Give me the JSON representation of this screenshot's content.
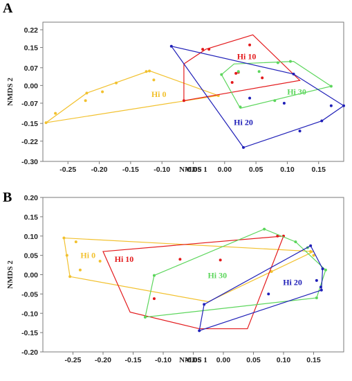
{
  "chart_data": [
    {
      "panel": "A",
      "type": "scatter",
      "xlabel": "NMDS 1",
      "ylabel": "NMDS 2",
      "xlim": [
        -0.29,
        0.19
      ],
      "ylim": [
        -0.3,
        0.25
      ],
      "xticks": [
        "-0.25",
        "-0.20",
        "-0.15",
        "-0.10",
        "-0.05",
        "0.00",
        "0.05",
        "0.10",
        "0.15"
      ],
      "xtick_values": [
        -0.25,
        -0.2,
        -0.15,
        -0.1,
        -0.05,
        0.0,
        0.05,
        0.1,
        0.15
      ],
      "yticks": [
        "0.22",
        "0.15",
        "0.07",
        "0.00",
        "-0.07",
        "-0.15",
        "-0.22",
        "-0.30"
      ],
      "ytick_values": [
        0.22,
        0.15,
        0.07,
        0.0,
        -0.07,
        -0.15,
        -0.22,
        -0.3
      ],
      "series": [
        {
          "name": "Hi 0",
          "color": "#f2c12e",
          "label_pos": [
            -0.105,
            -0.035
          ],
          "points": [
            [
              -0.27,
              -0.11
            ],
            [
              -0.22,
              -0.03
            ],
            [
              -0.222,
              -0.06
            ],
            [
              -0.195,
              -0.025
            ],
            [
              -0.173,
              0.01
            ],
            [
              -0.125,
              0.055
            ],
            [
              -0.12,
              0.057
            ],
            [
              -0.113,
              0.022
            ],
            [
              -0.01,
              -0.04
            ],
            [
              -0.285,
              -0.147
            ]
          ],
          "hull": [
            [
              -0.285,
              -0.147
            ],
            [
              -0.22,
              -0.03
            ],
            [
              -0.12,
              0.058
            ],
            [
              -0.01,
              -0.04
            ]
          ]
        },
        {
          "name": "Hi 10",
          "color": "#e31a1c",
          "label_pos": [
            0.035,
            0.115
          ],
          "points": [
            [
              -0.035,
              0.143
            ],
            [
              -0.025,
              0.143
            ],
            [
              0.04,
              0.16
            ],
            [
              0.022,
              0.052
            ],
            [
              0.012,
              0.012
            ],
            [
              0.06,
              0.03
            ],
            [
              -0.065,
              -0.06
            ],
            [
              0.018,
              0.048
            ]
          ],
          "hull": [
            [
              -0.065,
              0.085
            ],
            [
              -0.03,
              0.143
            ],
            [
              0.045,
              0.2
            ],
            [
              0.12,
              0.02
            ],
            [
              -0.065,
              -0.06
            ]
          ]
        },
        {
          "name": "Hi 30",
          "color": "#5cd65c",
          "label_pos": [
            0.115,
            -0.025
          ],
          "points": [
            [
              -0.005,
              0.043
            ],
            [
              0.022,
              0.055
            ],
            [
              0.055,
              0.055
            ],
            [
              0.085,
              0.09
            ],
            [
              0.105,
              0.095
            ],
            [
              0.08,
              -0.06
            ],
            [
              0.025,
              -0.085
            ],
            [
              0.17,
              -0.003
            ]
          ],
          "hull": [
            [
              -0.005,
              0.043
            ],
            [
              0.015,
              0.085
            ],
            [
              0.11,
              0.095
            ],
            [
              0.17,
              -0.003
            ],
            [
              0.025,
              -0.09
            ]
          ]
        },
        {
          "name": "Hi 20",
          "color": "#2020b8",
          "label_pos": [
            0.03,
            -0.145
          ],
          "points": [
            [
              -0.085,
              0.155
            ],
            [
              0.11,
              0.045
            ],
            [
              0.04,
              -0.05
            ],
            [
              0.095,
              -0.07
            ],
            [
              0.17,
              -0.08
            ],
            [
              0.19,
              -0.08
            ],
            [
              0.155,
              -0.14
            ],
            [
              0.12,
              -0.18
            ],
            [
              0.03,
              -0.245
            ]
          ],
          "hull": [
            [
              -0.085,
              0.155
            ],
            [
              0.11,
              0.045
            ],
            [
              0.19,
              -0.08
            ],
            [
              0.155,
              -0.14
            ],
            [
              0.03,
              -0.245
            ]
          ]
        }
      ]
    },
    {
      "panel": "B",
      "type": "scatter",
      "xlabel": "NMDS 1",
      "ylabel": "NMDS 2",
      "xlim": [
        -0.3,
        0.2
      ],
      "ylim": [
        -0.2,
        0.2
      ],
      "xticks": [
        "-0.25",
        "-0.20",
        "-0.15",
        "-0.10",
        "-0.05",
        "0.00",
        "0.05",
        "0.10",
        "0.15"
      ],
      "xtick_values": [
        -0.25,
        -0.2,
        -0.15,
        -0.1,
        -0.05,
        0.0,
        0.05,
        0.1,
        0.15
      ],
      "yticks": [
        "0.20",
        "0.15",
        "0.10",
        "0.05",
        "0.00",
        "-0.05",
        "-0.10",
        "-0.15",
        "-0.20"
      ],
      "ytick_values": [
        0.2,
        0.15,
        0.1,
        0.05,
        0.0,
        -0.05,
        -0.1,
        -0.15,
        -0.2
      ],
      "series": [
        {
          "name": "Hi 0",
          "color": "#f2c12e",
          "label_pos": [
            -0.225,
            0.05
          ],
          "points": [
            [
              -0.265,
              0.095
            ],
            [
              -0.26,
              0.05
            ],
            [
              -0.245,
              0.085
            ],
            [
              -0.238,
              0.012
            ],
            [
              -0.205,
              0.035
            ],
            [
              -0.255,
              -0.005
            ],
            [
              0.08,
              0.008
            ],
            [
              0.145,
              0.06
            ],
            [
              0.15,
              0.05
            ]
          ],
          "hull": [
            [
              -0.265,
              0.095
            ],
            [
              0.15,
              0.06
            ],
            [
              -0.025,
              -0.07
            ],
            [
              -0.255,
              -0.005
            ]
          ]
        },
        {
          "name": "Hi 10",
          "color": "#e31a1c",
          "label_pos": [
            -0.165,
            0.04
          ],
          "points": [
            [
              -0.072,
              0.04
            ],
            [
              -0.005,
              0.038
            ],
            [
              -0.115,
              -0.062
            ],
            [
              0.09,
              0.1
            ],
            [
              0.1,
              0.1
            ]
          ],
          "hull": [
            [
              -0.2,
              0.06
            ],
            [
              0.1,
              0.1
            ],
            [
              0.04,
              -0.14
            ],
            [
              -0.04,
              -0.14
            ],
            [
              -0.155,
              -0.097
            ]
          ]
        },
        {
          "name": "Hi 30",
          "color": "#5cd65c",
          "label_pos": [
            -0.01,
            -0.002
          ],
          "points": [
            [
              0.068,
              0.118
            ],
            [
              0.12,
              0.085
            ],
            [
              0.14,
              0.07
            ],
            [
              0.17,
              0.012
            ],
            [
              0.155,
              -0.06
            ],
            [
              -0.115,
              -0.002
            ],
            [
              -0.13,
              -0.11
            ]
          ],
          "hull": [
            [
              -0.115,
              -0.002
            ],
            [
              0.068,
              0.118
            ],
            [
              0.12,
              0.085
            ],
            [
              0.17,
              0.012
            ],
            [
              0.155,
              -0.06
            ],
            [
              -0.13,
              -0.11
            ]
          ]
        },
        {
          "name": "Hi 20",
          "color": "#2020b8",
          "label_pos": [
            0.115,
            -0.02
          ],
          "points": [
            [
              0.075,
              -0.05
            ],
            [
              0.155,
              -0.015
            ],
            [
              0.162,
              -0.032
            ],
            [
              0.163,
              -0.04
            ],
            [
              0.165,
              0.015
            ],
            [
              0.145,
              0.075
            ],
            [
              -0.032,
              -0.077
            ],
            [
              -0.04,
              -0.145
            ]
          ],
          "hull": [
            [
              -0.04,
              -0.145
            ],
            [
              -0.032,
              -0.077
            ],
            [
              0.145,
              0.075
            ],
            [
              0.165,
              0.015
            ],
            [
              0.163,
              -0.04
            ]
          ]
        }
      ]
    }
  ]
}
